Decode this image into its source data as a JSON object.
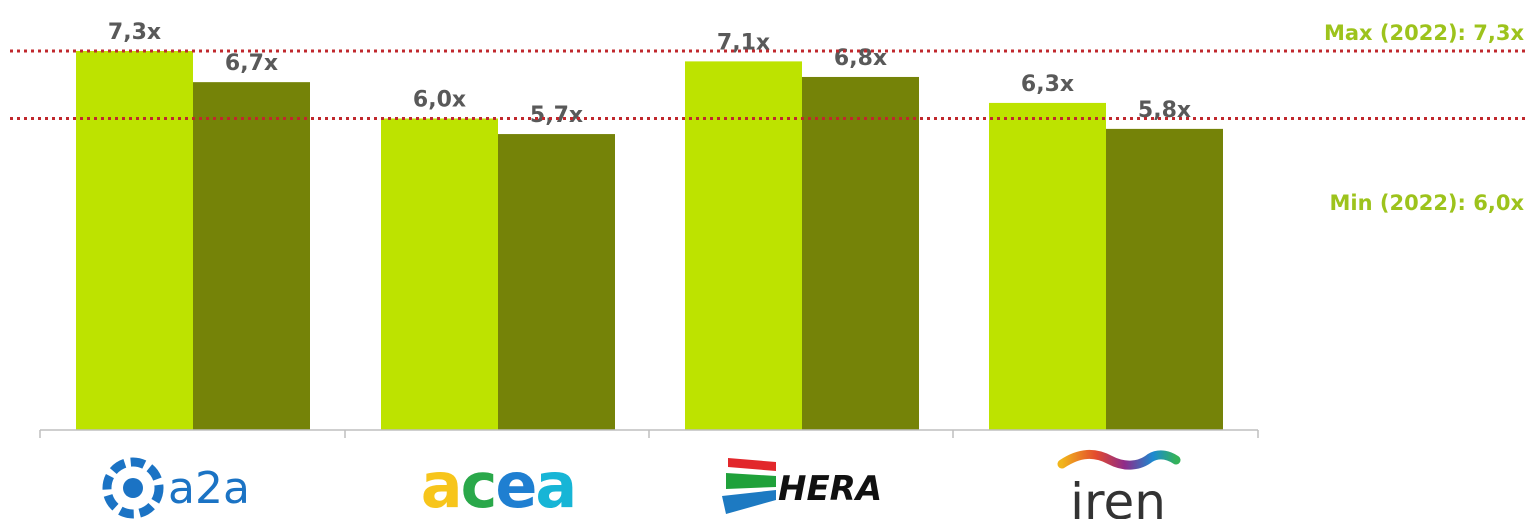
{
  "chart_data": {
    "type": "bar",
    "categories": [
      "a2a",
      "acea",
      "HERA",
      "iren"
    ],
    "series": [
      {
        "values": [
          7.3,
          6.0,
          7.1,
          6.3
        ],
        "labels": [
          "7,3x",
          "6,0x",
          "7,1x",
          "6,3x"
        ]
      },
      {
        "values": [
          6.7,
          5.7,
          6.8,
          5.8
        ],
        "labels": [
          "6,7x",
          "5,7x",
          "6,8x",
          "5,8x"
        ]
      }
    ],
    "ylim": [
      0,
      7.3
    ],
    "grid": false,
    "reference_lines": [
      {
        "value": 7.3,
        "label": "Max (2022): 7,3x"
      },
      {
        "value": 6.0,
        "label": "Min (2022): 6,0x"
      }
    ],
    "colors": {
      "series1": "#bde300",
      "series2": "#758308",
      "reference_line": "#c0282d",
      "reference_label": "#9dc31c",
      "axis": "#bfbfbf",
      "value_label": "#595959"
    }
  },
  "logos": {
    "a2a": {
      "text": "a2a",
      "color": "#1b73c4",
      "icon": "a2a-logo-icon"
    },
    "acea": {
      "text": "acea",
      "colors": [
        "#f7c51b",
        "#2aa84a",
        "#1f7fd1",
        "#17b5d6"
      ]
    },
    "hera": {
      "text": "HERA",
      "colors": [
        "#e2272b",
        "#1fa13a",
        "#1d7ac2"
      ]
    },
    "iren": {
      "text": "iren",
      "color": "#333333",
      "wave_colors": [
        "#f1b51b",
        "#e34a2e",
        "#8e2b8a",
        "#1b8ad1",
        "#34b25a"
      ]
    }
  }
}
